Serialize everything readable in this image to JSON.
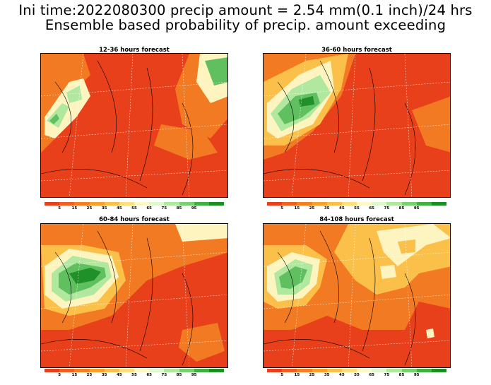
{
  "header": {
    "line1": "Ini time:2022080300 precip amount = 2.54 mm(0.1 inch)/24 hrs",
    "line2": "Ensemble based probability of precip. amount exceeding"
  },
  "panels": [
    {
      "title": "12-36 hours forecast"
    },
    {
      "title": "36-60 hours forecast"
    },
    {
      "title": "60-84 hours forecast"
    },
    {
      "title": "84-108 hours forecast"
    }
  ],
  "colorbar": {
    "colors": [
      "#e8401a",
      "#f0601e",
      "#f5801f",
      "#f9a02a",
      "#fbc04a",
      "#fde07c",
      "#fdf8c8",
      "#e0f8d0",
      "#b0e8a0",
      "#78d070",
      "#40b040",
      "#1a9020"
    ],
    "labels": [
      "5",
      "15",
      "25",
      "35",
      "45",
      "55",
      "65",
      "75",
      "85",
      "95"
    ]
  },
  "palette": {
    "low": "#e8401a",
    "mid": "#f27a22",
    "high": "#fbc04a",
    "pale": "#fdf4c0",
    "green1": "#b0e8a0",
    "green2": "#60c060",
    "green3": "#209028"
  }
}
